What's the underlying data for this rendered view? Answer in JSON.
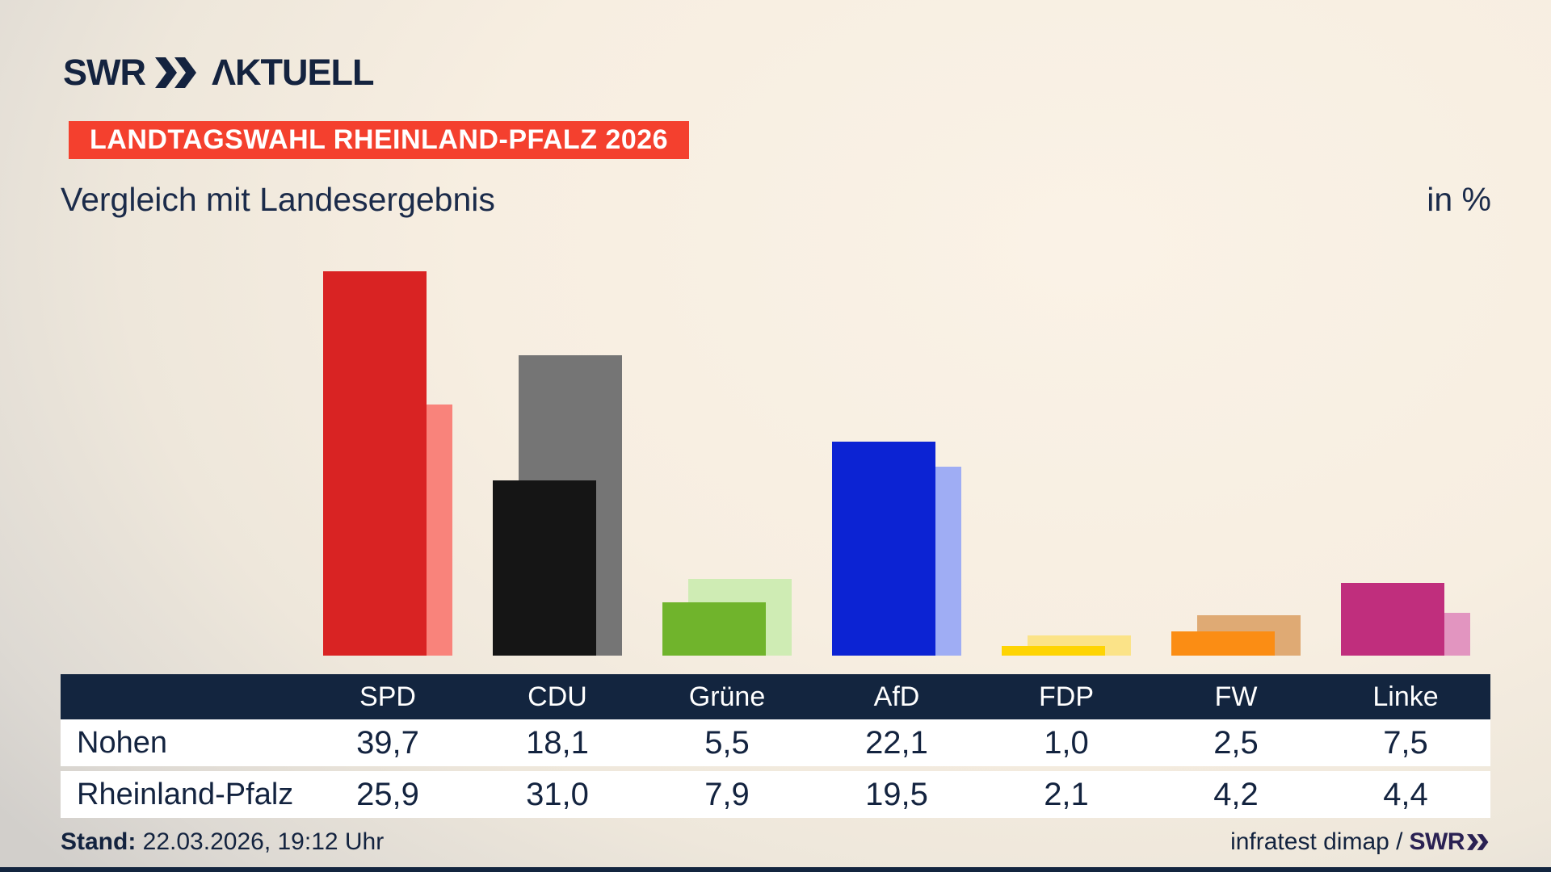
{
  "header": {
    "logo_swr": "SWR",
    "logo_aktuell": "ΛKTUELL",
    "badge": "LANDTAGSWAHL RHEINLAND-PFALZ 2026"
  },
  "title": "Vergleich mit Landesergebnis",
  "unit_label": "in %",
  "chart_data": {
    "type": "bar",
    "categories": [
      "SPD",
      "CDU",
      "Grüne",
      "AfD",
      "FDP",
      "FW",
      "Linke"
    ],
    "series": [
      {
        "name": "Nohen",
        "values": [
          39.7,
          18.1,
          5.5,
          22.1,
          1.0,
          2.5,
          7.5
        ]
      },
      {
        "name": "Rheinland-Pfalz",
        "values": [
          25.9,
          31.0,
          7.9,
          19.5,
          2.1,
          4.2,
          4.4
        ]
      }
    ],
    "title": "Vergleich mit Landesergebnis",
    "ylabel": "in %",
    "legend_position": "none",
    "grid": false,
    "palette": [
      {
        "party": "SPD",
        "main": "#d92323",
        "light": "#f9837b"
      },
      {
        "party": "CDU",
        "main": "#151515",
        "light": "#757575"
      },
      {
        "party": "Grüne",
        "main": "#70b42c",
        "light": "#cfecb4"
      },
      {
        "party": "AfD",
        "main": "#0c23d3",
        "light": "#9fadf4"
      },
      {
        "party": "FDP",
        "main": "#fed403",
        "light": "#fbe388"
      },
      {
        "party": "FW",
        "main": "#fb8d14",
        "light": "#dfaa74"
      },
      {
        "party": "Linke",
        "main": "#c02e7d",
        "light": "#e295c0"
      }
    ]
  },
  "table": {
    "columns": [
      "SPD",
      "CDU",
      "Grüne",
      "AfD",
      "FDP",
      "FW",
      "Linke"
    ],
    "rows": [
      {
        "label": "Nohen",
        "values": [
          "39,7",
          "18,1",
          "5,5",
          "22,1",
          "1,0",
          "2,5",
          "7,5"
        ]
      },
      {
        "label": "Rheinland-Pfalz",
        "values": [
          "25,9",
          "31,0",
          "7,9",
          "19,5",
          "2,1",
          "4,2",
          "4,4"
        ]
      }
    ]
  },
  "footer": {
    "stand_label": "Stand:",
    "stand_value": "22.03.2026, 19:12 Uhr",
    "source_text": "infratest dimap /",
    "brand": "SWR"
  },
  "colors": {
    "navy": "#13253f",
    "badge_red": "#f4402e",
    "brand_purple": "#2a2153",
    "background_cream": "#f7eee1"
  }
}
